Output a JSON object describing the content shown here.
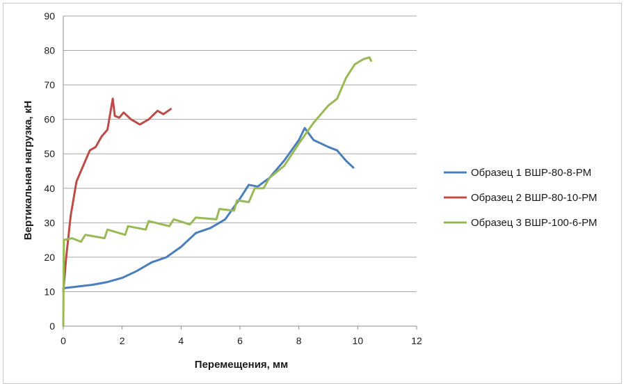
{
  "chart_data": {
    "type": "line",
    "title": "",
    "xlabel": "Перемещения, мм",
    "ylabel": "Вертикальная нагрузка, кН",
    "xlim": [
      0,
      12
    ],
    "ylim": [
      0,
      90
    ],
    "x_ticks": [
      "0",
      "2",
      "4",
      "6",
      "8",
      "10",
      "12"
    ],
    "y_ticks": [
      "0",
      "10",
      "20",
      "30",
      "40",
      "50",
      "60",
      "70",
      "80",
      "90"
    ],
    "grid": "horizontal",
    "legend_position": "right",
    "series": [
      {
        "name": "Образец 1 ВШР-80-8-РМ",
        "color": "#4a7ebb",
        "points": [
          [
            0,
            11
          ],
          [
            0.5,
            11.5
          ],
          [
            1,
            12
          ],
          [
            1.5,
            12.8
          ],
          [
            2,
            14
          ],
          [
            2.5,
            16
          ],
          [
            3,
            18.5
          ],
          [
            3.5,
            20
          ],
          [
            4,
            23
          ],
          [
            4.5,
            27
          ],
          [
            5,
            28.5
          ],
          [
            5.5,
            31
          ],
          [
            6,
            37
          ],
          [
            6.3,
            41
          ],
          [
            6.6,
            40.5
          ],
          [
            7,
            43
          ],
          [
            7.5,
            48
          ],
          [
            8,
            54
          ],
          [
            8.2,
            57.5
          ],
          [
            8.5,
            54
          ],
          [
            9,
            52
          ],
          [
            9.3,
            51
          ],
          [
            9.6,
            48
          ],
          [
            9.85,
            46
          ]
        ]
      },
      {
        "name": "Образец 2 ВШР-80-10-РМ",
        "color": "#be4b48",
        "points": [
          [
            0,
            10
          ],
          [
            0.1,
            20
          ],
          [
            0.25,
            32
          ],
          [
            0.45,
            42
          ],
          [
            0.7,
            47
          ],
          [
            0.9,
            51
          ],
          [
            1.1,
            52
          ],
          [
            1.3,
            55
          ],
          [
            1.5,
            57
          ],
          [
            1.6,
            62
          ],
          [
            1.68,
            66
          ],
          [
            1.75,
            61
          ],
          [
            1.9,
            60.5
          ],
          [
            2.05,
            62
          ],
          [
            2.3,
            60
          ],
          [
            2.6,
            58.5
          ],
          [
            2.9,
            60
          ],
          [
            3.2,
            62.5
          ],
          [
            3.4,
            61.5
          ],
          [
            3.65,
            63
          ]
        ]
      },
      {
        "name": "Образец 3 ВШР-100-6-РМ",
        "color": "#98b954",
        "points": [
          [
            0,
            0
          ],
          [
            0.02,
            25
          ],
          [
            0.3,
            25.5
          ],
          [
            0.6,
            24.5
          ],
          [
            0.75,
            26.5
          ],
          [
            1.4,
            25.5
          ],
          [
            1.5,
            28
          ],
          [
            2.1,
            26.5
          ],
          [
            2.2,
            29
          ],
          [
            2.8,
            28
          ],
          [
            2.9,
            30.5
          ],
          [
            3.6,
            29
          ],
          [
            3.75,
            31
          ],
          [
            4.3,
            29.5
          ],
          [
            4.5,
            31.5
          ],
          [
            5.2,
            31
          ],
          [
            5.3,
            34
          ],
          [
            5.8,
            33.5
          ],
          [
            5.9,
            36.5
          ],
          [
            6.3,
            36
          ],
          [
            6.5,
            40
          ],
          [
            6.8,
            40
          ],
          [
            7,
            43
          ],
          [
            7.5,
            46.5
          ],
          [
            8,
            53
          ],
          [
            8.5,
            59
          ],
          [
            9,
            64
          ],
          [
            9.3,
            66
          ],
          [
            9.6,
            72
          ],
          [
            9.9,
            76
          ],
          [
            10.2,
            77.5
          ],
          [
            10.4,
            78
          ],
          [
            10.45,
            77
          ]
        ]
      }
    ]
  }
}
